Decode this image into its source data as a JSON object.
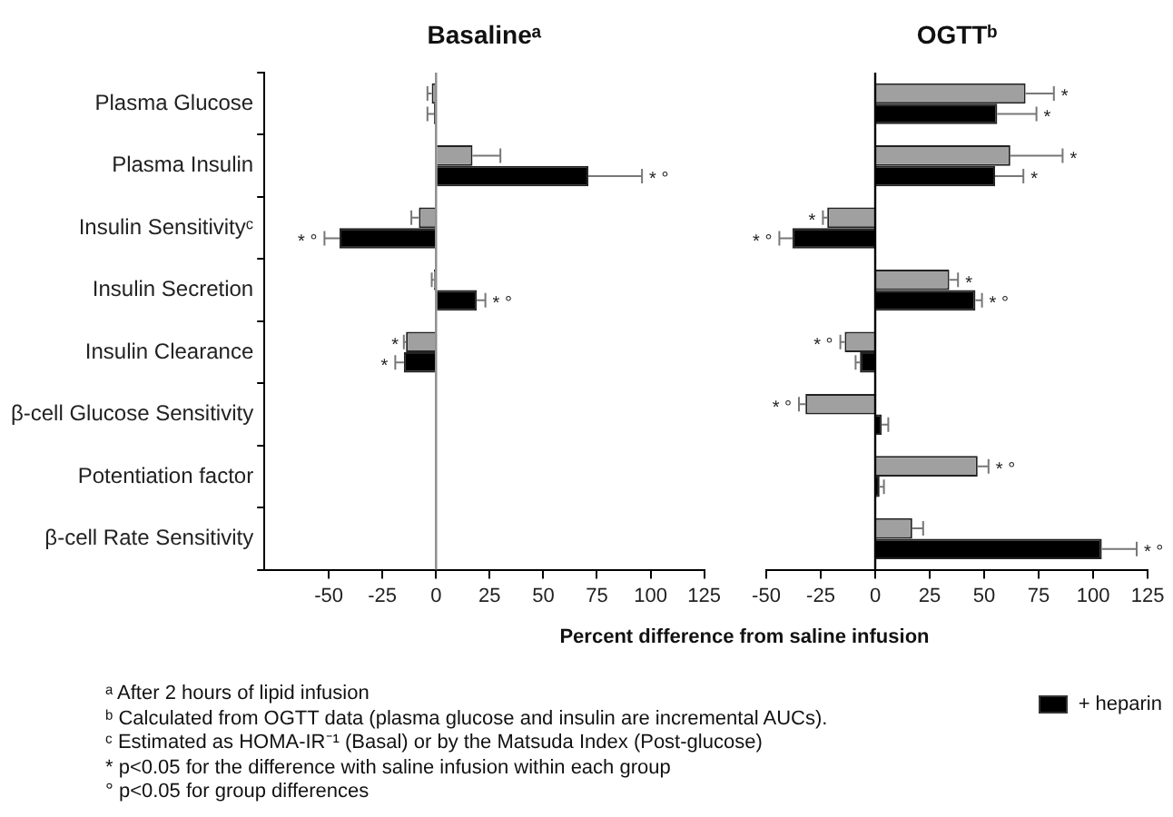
{
  "chart_data": [
    {
      "type": "bar",
      "orientation": "horizontal",
      "title": "Basalineᵃ",
      "categories": [
        "Plasma Glucose",
        "Plasma Insulin",
        "Insulin Sensitivityᶜ",
        "Insulin Secretion",
        "Insulin Clearance",
        "β-cell Glucose Sensitivity",
        "Potentiation factor",
        "β-cell Rate Sensitivity"
      ],
      "series": [
        {
          "color": "#a0a0a0",
          "values": [
            -2,
            17,
            -8,
            -1,
            -14,
            null,
            null,
            null
          ],
          "errors": [
            [
              -4,
              -2
            ],
            [
              17,
              30
            ],
            [
              -11.5,
              -8
            ],
            [
              -2,
              -1
            ],
            [
              -15,
              -14
            ],
            null,
            null,
            null
          ]
        },
        {
          "color": "#000000",
          "values": [
            -1,
            71,
            -45,
            19,
            -15,
            null,
            null,
            null
          ],
          "errors": [
            [
              -4,
              -1
            ],
            [
              71,
              96
            ],
            [
              -52,
              -45
            ],
            [
              19,
              23
            ],
            [
              -19,
              -15
            ],
            null,
            null,
            null
          ]
        }
      ],
      "xlim": [
        -80,
        125
      ],
      "xticks": [
        -50,
        -25,
        0,
        25,
        50,
        75,
        100,
        125
      ],
      "ref_lines": [
        {
          "axis": "x",
          "value": 0,
          "color": "#8c8c8c"
        }
      ],
      "annotations": [
        {
          "text": "* °",
          "x": 96,
          "y": "Plasma Insulin"
        },
        {
          "text": "* °",
          "x": -52,
          "y": "Insulin Sensitivityᶜ"
        },
        {
          "text": "* °",
          "x": 23,
          "y": "Insulin Secretion"
        },
        {
          "text": "*",
          "x": -14,
          "y": "Insulin Clearance"
        },
        {
          "text": "*",
          "x": -19,
          "y": "Insulin Clearance"
        },
        "ᵃ After 2 hours of lipid infusion",
        "ᵇ Calculated from OGTT data (plasma glucose and insulin are incremental AUCs).",
        "ᶜ Estimated as HOMA-IR⁻¹ (Basal) or by the Matsuda Index (Post-glucose)",
        "* p<0.05 for the difference with saline infusion within each group",
        "° p<0.05 for group differences"
      ]
    },
    {
      "type": "bar",
      "orientation": "horizontal",
      "title": "OGTTᵇ",
      "xlabel": "Percent difference from saline infusion",
      "categories": [
        "Plasma Glucose",
        "Plasma Insulin",
        "Insulin Sensitivityᶜ",
        "Insulin Secretion",
        "Insulin Clearance",
        "β-cell Glucose Sensitivity",
        "Potentiation factor",
        "β-cell Rate Sensitivity"
      ],
      "series": [
        {
          "color": "#a0a0a0",
          "values": [
            69,
            62,
            -22,
            34,
            -14,
            -32,
            47,
            17
          ],
          "errors": [
            [
              69,
              82
            ],
            [
              62,
              86
            ],
            [
              -24,
              -22
            ],
            [
              34,
              38
            ],
            [
              -16,
              -14
            ],
            [
              -35,
              -32
            ],
            [
              47,
              52
            ],
            [
              17,
              22
            ]
          ]
        },
        {
          "name": "+ heparin",
          "color": "#000000",
          "values": [
            56,
            55,
            -38,
            46,
            -7,
            3,
            2,
            104
          ],
          "errors": [
            [
              56,
              74
            ],
            [
              55,
              68
            ],
            [
              -44,
              -38
            ],
            [
              46,
              49
            ],
            [
              -9,
              -7
            ],
            [
              3,
              6
            ],
            [
              2,
              4
            ],
            [
              104,
              120
            ]
          ]
        }
      ],
      "xlim": [
        -50,
        125
      ],
      "xticks": [
        -50,
        -25,
        0,
        25,
        50,
        75,
        100,
        125
      ],
      "tick_labels": "x",
      "legend": "bottom right",
      "ref_lines": [
        {
          "axis": "x",
          "value": 0,
          "color": "#000000"
        }
      ],
      "annotations": [
        {
          "text": "*",
          "x": 82,
          "y": "Plasma Glucose"
        },
        {
          "text": "*",
          "x": 74,
          "y": "Plasma Glucose"
        },
        {
          "text": "*",
          "x": 86,
          "y": "Plasma Insulin"
        },
        {
          "text": "*",
          "x": 68,
          "y": "Plasma Insulin"
        },
        {
          "text": "*",
          "x": -24,
          "y": "Insulin Sensitivityᶜ"
        },
        {
          "text": "* °",
          "x": -44,
          "y": "Insulin Sensitivityᶜ"
        },
        {
          "text": "*",
          "x": 38,
          "y": "Insulin Secretion"
        },
        {
          "text": "* °",
          "x": 49,
          "y": "Insulin Secretion"
        },
        {
          "text": "* °",
          "x": -16,
          "y": "Insulin Clearance"
        },
        {
          "text": "* °",
          "x": -35,
          "y": "β-cell Glucose Sensitivity"
        },
        {
          "text": "* °",
          "x": 52,
          "y": "Potentiation factor"
        },
        {
          "text": "* °",
          "x": 120,
          "y": "β-cell Rate Sensitivity"
        }
      ]
    }
  ]
}
